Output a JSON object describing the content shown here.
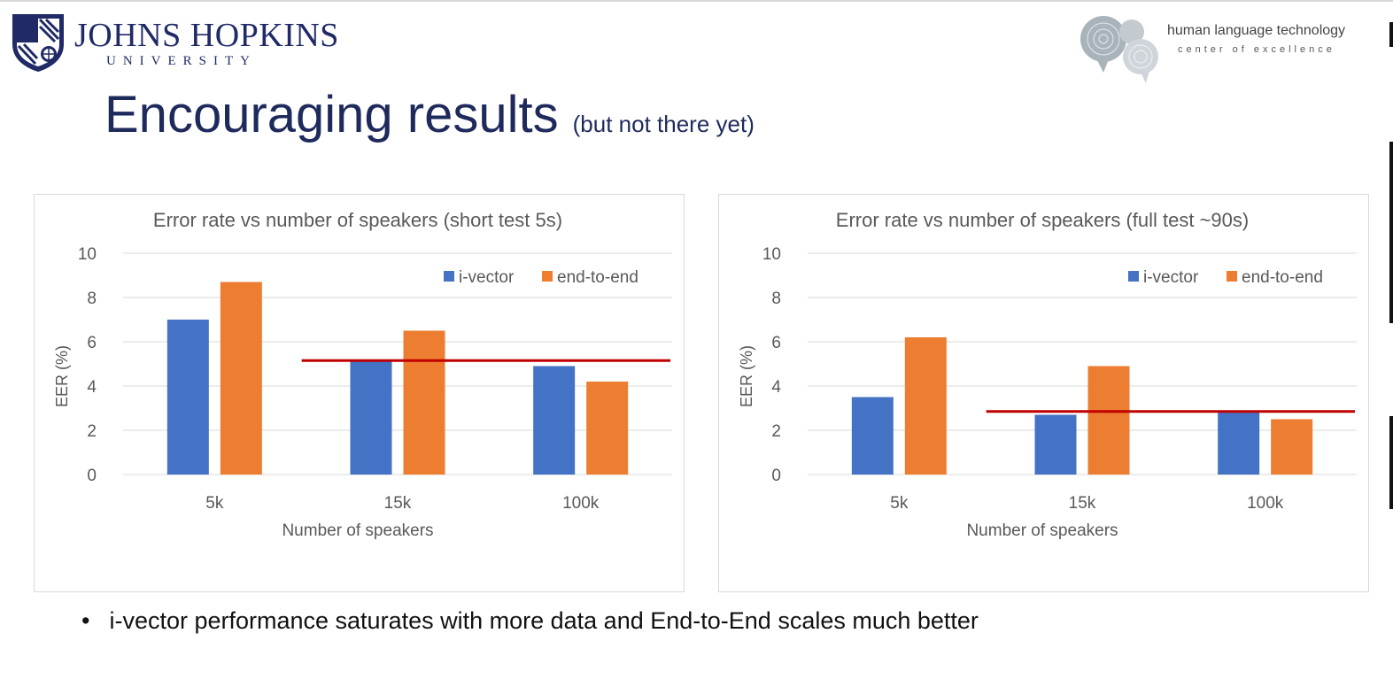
{
  "header": {
    "university_name": "JOHNS HOPKINS",
    "university_sub": "UNIVERSITY",
    "hlt_line1": "human language technology",
    "hlt_line2": "center of excellence"
  },
  "slide": {
    "title": "Encouraging results",
    "subtitle": "(but not there yet)",
    "bullet": "i-vector performance saturates with more data and End-to-End scales much better"
  },
  "colors": {
    "i_vector": "#4472C4",
    "end_to_end": "#ED7D31",
    "reference_line": "#C00000",
    "gridline": "#D9D9D9",
    "title_text": "#1F2A5C"
  },
  "chart_data": [
    {
      "type": "bar",
      "title": "Error rate vs number of speakers (short test 5s)",
      "xlabel": "Number of speakers",
      "ylabel": "EER (%)",
      "categories": [
        "5k",
        "15k",
        "100k"
      ],
      "ylim": [
        0,
        10
      ],
      "yticks": [
        0,
        2,
        4,
        6,
        8,
        10
      ],
      "grid": true,
      "legend_position": "top-right",
      "series": [
        {
          "name": "i-vector",
          "values": [
            7.0,
            5.1,
            4.9
          ]
        },
        {
          "name": "end-to-end",
          "values": [
            8.7,
            6.5,
            4.2
          ]
        }
      ],
      "reference_line": {
        "y": 5.15,
        "x_from": "15k",
        "x_to": "100k"
      }
    },
    {
      "type": "bar",
      "title": "Error rate vs number of speakers (full test ~90s)",
      "xlabel": "Number of speakers",
      "ylabel": "EER (%)",
      "categories": [
        "5k",
        "15k",
        "100k"
      ],
      "ylim": [
        0,
        10
      ],
      "yticks": [
        0,
        2,
        4,
        6,
        8,
        10
      ],
      "grid": true,
      "legend_position": "top-right",
      "series": [
        {
          "name": "i-vector",
          "values": [
            3.5,
            2.7,
            2.8
          ]
        },
        {
          "name": "end-to-end",
          "values": [
            6.2,
            4.9,
            2.5
          ]
        }
      ],
      "reference_line": {
        "y": 2.85,
        "x_from": "15k",
        "x_to": "100k"
      }
    }
  ]
}
